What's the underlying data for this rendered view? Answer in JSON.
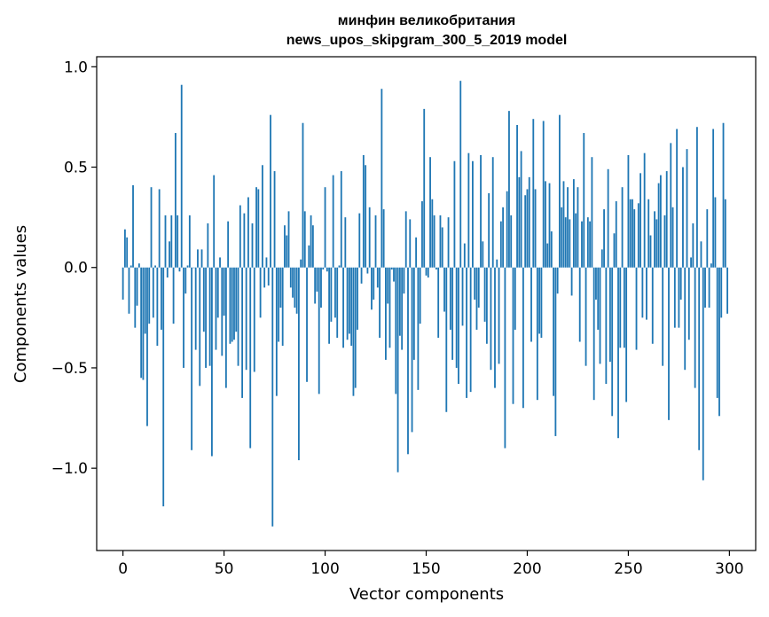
{
  "chart_data": {
    "type": "bar",
    "title_line1": "минфин великобритания",
    "title_line2": "news_upos_skipgram_300_5_2019 model",
    "xlabel": "Vector components",
    "ylabel": "Components values",
    "xlim": [
      -13,
      313
    ],
    "ylim": [
      -1.41,
      1.05
    ],
    "xticks": [
      0,
      50,
      100,
      150,
      200,
      250,
      300
    ],
    "xtick_labels": [
      "0",
      "50",
      "100",
      "150",
      "200",
      "250",
      "300"
    ],
    "yticks": [
      1.0,
      0.5,
      0.0,
      -0.5,
      -1.0
    ],
    "ytick_labels": [
      "1.0",
      "0.5",
      "0.0",
      "−0.5",
      "−1.0"
    ],
    "bar_color": "#1f77b4",
    "values": [
      -0.16,
      0.19,
      0.15,
      -0.23,
      0.01,
      0.41,
      -0.3,
      -0.19,
      0.02,
      -0.55,
      -0.56,
      -0.33,
      -0.79,
      -0.28,
      0.4,
      -0.25,
      0.01,
      -0.39,
      0.39,
      -0.31,
      -1.19,
      0.26,
      -0.05,
      0.13,
      0.26,
      -0.28,
      0.67,
      0.26,
      -0.02,
      0.91,
      -0.5,
      -0.13,
      0.01,
      0.26,
      -0.91,
      0.0,
      -0.41,
      0.09,
      -0.59,
      0.09,
      -0.32,
      -0.5,
      0.22,
      -0.49,
      -0.94,
      0.46,
      -0.41,
      -0.25,
      0.05,
      -0.44,
      -0.24,
      -0.6,
      0.23,
      -0.38,
      -0.37,
      -0.36,
      -0.32,
      -0.49,
      0.31,
      -0.65,
      0.27,
      -0.51,
      0.35,
      -0.9,
      0.22,
      -0.52,
      0.4,
      0.39,
      -0.25,
      0.51,
      -0.1,
      0.05,
      -0.09,
      0.76,
      -1.29,
      0.48,
      -0.64,
      -0.37,
      -0.2,
      -0.39,
      0.21,
      0.16,
      0.28,
      -0.1,
      -0.15,
      -0.2,
      -0.23,
      -0.96,
      0.04,
      0.72,
      0.28,
      -0.57,
      0.11,
      0.26,
      0.21,
      -0.18,
      -0.12,
      -0.63,
      -0.2,
      -0.01,
      0.4,
      -0.02,
      -0.38,
      -0.27,
      0.46,
      -0.25,
      -0.35,
      0.01,
      0.48,
      -0.4,
      0.25,
      -0.36,
      -0.33,
      -0.39,
      -0.64,
      -0.6,
      -0.31,
      0.27,
      -0.08,
      0.56,
      0.51,
      -0.03,
      0.3,
      -0.21,
      -0.16,
      0.26,
      -0.1,
      -0.35,
      0.89,
      0.29,
      -0.46,
      -0.18,
      -0.4,
      -0.01,
      -0.07,
      -0.63,
      -1.02,
      -0.34,
      -0.41,
      -0.13,
      0.28,
      -0.93,
      0.24,
      -0.82,
      -0.46,
      0.15,
      -0.61,
      -0.28,
      0.33,
      0.79,
      -0.04,
      -0.05,
      0.55,
      0.34,
      0.26,
      -0.01,
      -0.35,
      0.26,
      0.2,
      -0.22,
      -0.72,
      0.25,
      -0.31,
      -0.46,
      0.53,
      -0.5,
      -0.58,
      0.93,
      -0.29,
      0.12,
      -0.65,
      0.57,
      -0.62,
      0.53,
      -0.16,
      -0.31,
      -0.2,
      0.56,
      0.13,
      -0.27,
      -0.38,
      0.37,
      -0.51,
      0.55,
      -0.6,
      0.04,
      -0.48,
      0.23,
      0.3,
      -0.9,
      0.38,
      0.78,
      0.26,
      -0.68,
      -0.31,
      0.71,
      0.45,
      0.58,
      -0.7,
      0.36,
      0.39,
      0.45,
      -0.37,
      0.74,
      0.39,
      -0.66,
      -0.33,
      -0.35,
      0.73,
      0.43,
      0.12,
      0.42,
      0.18,
      -0.64,
      -0.84,
      -0.13,
      0.76,
      0.3,
      0.43,
      0.25,
      0.4,
      0.24,
      -0.14,
      0.44,
      0.27,
      0.4,
      -0.37,
      0.23,
      0.67,
      -0.49,
      0.25,
      0.23,
      0.55,
      -0.66,
      -0.16,
      -0.31,
      -0.48,
      0.09,
      0.29,
      -0.58,
      0.49,
      -0.47,
      -0.74,
      0.17,
      0.33,
      -0.85,
      -0.4,
      0.4,
      -0.4,
      -0.67,
      0.56,
      0.34,
      0.34,
      0.29,
      -0.41,
      0.32,
      0.47,
      -0.25,
      0.57,
      -0.26,
      0.34,
      0.16,
      -0.38,
      0.28,
      0.24,
      0.42,
      0.46,
      -0.49,
      0.26,
      0.48,
      -0.76,
      0.62,
      0.3,
      -0.3,
      0.69,
      -0.3,
      -0.16,
      0.5,
      -0.51,
      0.59,
      -0.36,
      0.05,
      0.22,
      -0.6,
      0.7,
      -0.91,
      0.13,
      -1.06,
      -0.2,
      0.29,
      -0.2,
      0.02,
      0.69,
      0.35,
      -0.65,
      -0.74,
      -0.25,
      0.72,
      0.34,
      -0.23
    ]
  }
}
